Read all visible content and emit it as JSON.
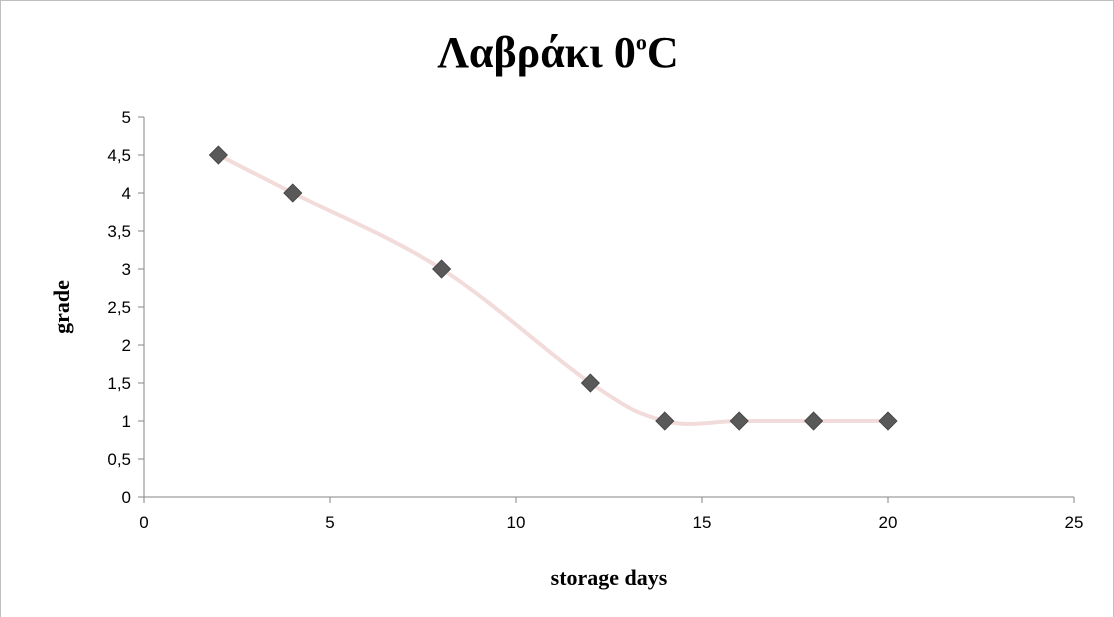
{
  "chart_data": {
    "type": "line",
    "title": {
      "main": "Λαβράκι 0",
      "superscript": "o",
      "suffix": "C"
    },
    "xlabel": "storage days",
    "ylabel": "grade",
    "xlim": [
      0,
      25
    ],
    "ylim": [
      0,
      5
    ],
    "x_ticks": [
      0,
      5,
      10,
      15,
      20,
      25
    ],
    "y_ticks": [
      0,
      0.5,
      1,
      1.5,
      2,
      2.5,
      3,
      3.5,
      4,
      4.5,
      5
    ],
    "y_tick_labels": [
      "0",
      "0,5",
      "1",
      "1,5",
      "2",
      "2,5",
      "3",
      "3,5",
      "4",
      "4,5",
      "5"
    ],
    "x_tick_labels": [
      "0",
      "5",
      "10",
      "15",
      "20",
      "25"
    ],
    "grid": false,
    "legend": "none",
    "smooth": true,
    "series": [
      {
        "x": [
          2,
          4,
          8,
          12,
          14,
          16,
          18,
          20
        ],
        "y": [
          4.5,
          4,
          3,
          1.5,
          1,
          1,
          1,
          1
        ],
        "line_color": "#f2dcdb",
        "marker": "diamond",
        "marker_color": "#595959"
      }
    ]
  }
}
